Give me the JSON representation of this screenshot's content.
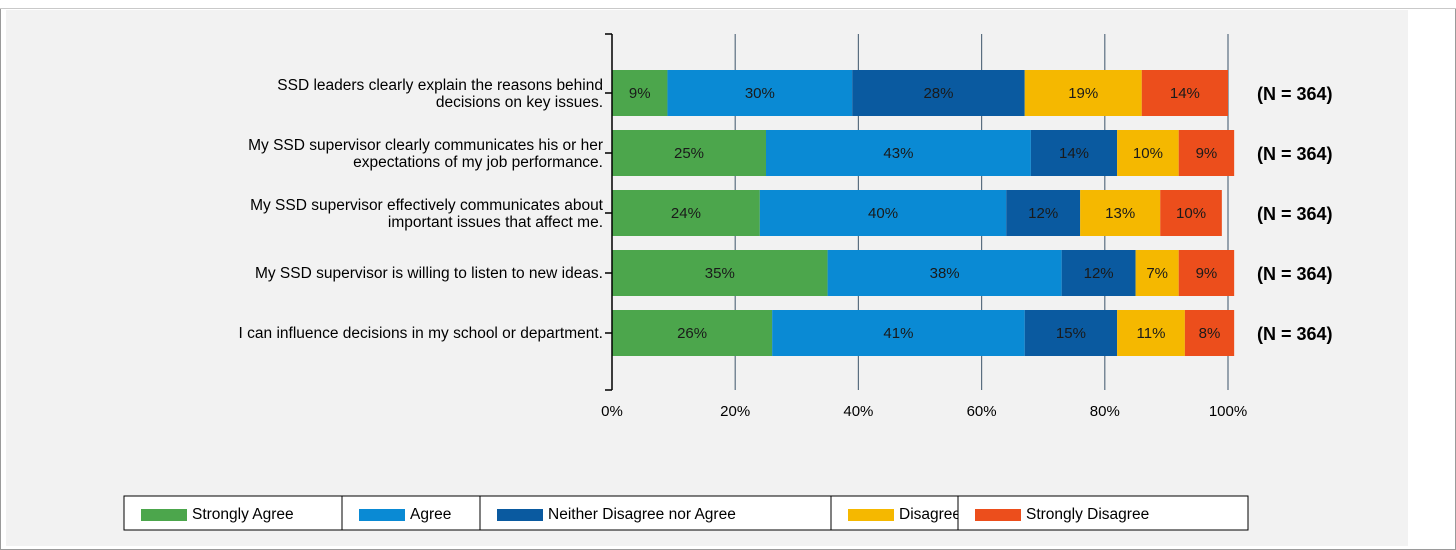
{
  "chart_data": {
    "type": "bar",
    "orientation": "horizontal",
    "stacked": true,
    "categories": [
      [
        "SSD leaders clearly explain the reasons behind",
        "decisions on key issues."
      ],
      [
        "My SSD supervisor clearly communicates his or her",
        "expectations of my job performance."
      ],
      [
        "My SSD supervisor effectively communicates about",
        "important issues that affect me."
      ],
      [
        "My SSD supervisor is willing to listen to new ideas."
      ],
      [
        "I can influence decisions in my school or department."
      ]
    ],
    "series": [
      {
        "name": "Strongly Agree",
        "color": "#4ca64c",
        "values": [
          9,
          25,
          24,
          35,
          26
        ]
      },
      {
        "name": "Agree",
        "color": "#0a8ad4",
        "values": [
          30,
          43,
          40,
          38,
          41
        ]
      },
      {
        "name": "Neither Disagree nor Agree",
        "color": "#0a5aa0",
        "values": [
          28,
          14,
          12,
          12,
          15
        ]
      },
      {
        "name": "Disagree",
        "color": "#f5b800",
        "values": [
          19,
          10,
          13,
          7,
          11
        ]
      },
      {
        "name": "Strongly Disagree",
        "color": "#ec4e1c",
        "values": [
          14,
          9,
          10,
          9,
          8
        ]
      }
    ],
    "n_labels": [
      "(N = 364)",
      "(N = 364)",
      "(N = 364)",
      "(N = 364)",
      "(N = 364)"
    ],
    "xticks": [
      "0%",
      "20%",
      "40%",
      "60%",
      "80%",
      "100%"
    ],
    "xlim": [
      0,
      100
    ],
    "grid": true,
    "legend_position": "bottom"
  }
}
